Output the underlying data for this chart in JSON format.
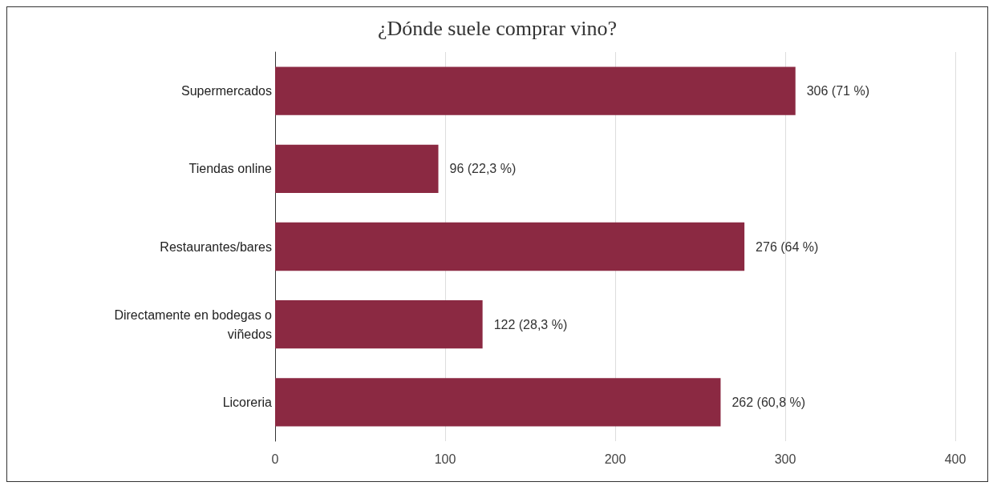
{
  "chart_data": {
    "type": "bar",
    "orientation": "horizontal",
    "title": "¿Dónde suele comprar vino?",
    "categories": [
      "Supermercados",
      "Tiendas online",
      "Restaurantes/bares",
      "Directamente en bodegas o viñedos",
      "Licoreria"
    ],
    "values": [
      306,
      96,
      276,
      122,
      262
    ],
    "value_labels": [
      "306 (71 %)",
      "96 (22,3 %)",
      "276 (64 %)",
      "122 (28,3 %)",
      "262 (60,8 %)"
    ],
    "color": "#8b2942",
    "xlim": [
      0,
      400
    ],
    "xticks": [
      0,
      100,
      200,
      300,
      400
    ],
    "grid": "x"
  }
}
